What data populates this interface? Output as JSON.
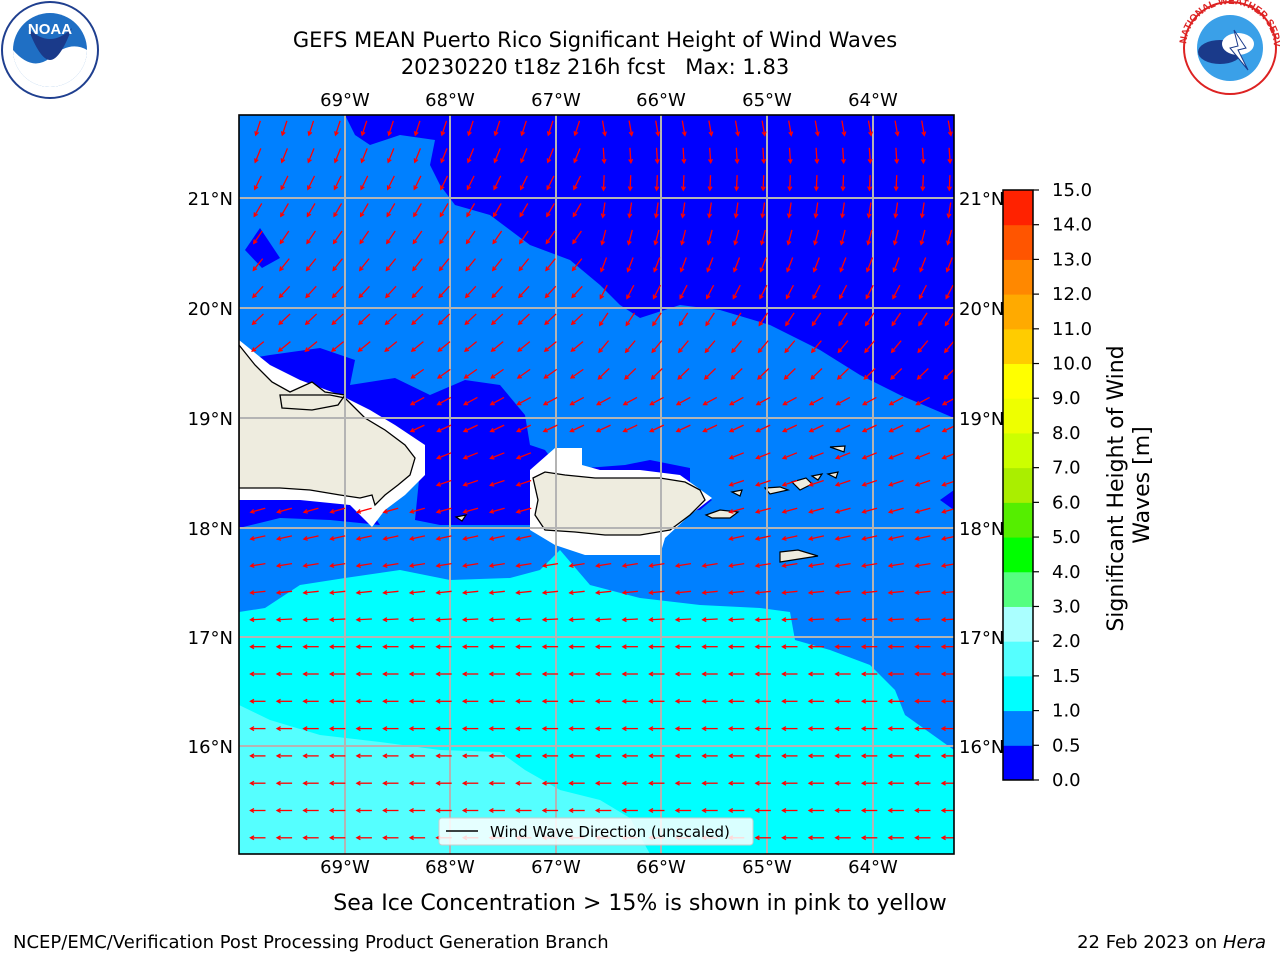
{
  "header": {
    "title": "GEFS MEAN Puerto Rico Significant Height of Wind Waves",
    "subtitle": "20230220 t18z 216h fcst",
    "max_label": "Max: 1.83"
  },
  "logos": {
    "left_text": "NOAA",
    "left_ring": "NATIONAL OCEANIC AND ATMOSPHERIC ADMINISTRATION · U.S. DEPARTMENT OF COMMERCE",
    "right_ring": "NATIONAL WEATHER SERVICE"
  },
  "map": {
    "lon_labels": [
      "69°W",
      "68°W",
      "67°W",
      "66°W",
      "65°W",
      "64°W"
    ],
    "lat_labels": [
      "21°N",
      "20°N",
      "19°N",
      "18°N",
      "17°N",
      "16°N"
    ],
    "legend_label": "Wind Wave Direction (unscaled)",
    "arrow_color": "#ff0000",
    "land_color": "#eeecdf"
  },
  "colorbar": {
    "title": "Significant Height of Wind Waves [m]",
    "title_line1": "Significant Height of Wind",
    "title_line2": "Waves [m]",
    "ticks": [
      "0.0",
      "0.5",
      "1.0",
      "1.5",
      "2.0",
      "3.0",
      "4.0",
      "5.0",
      "6.0",
      "7.0",
      "8.0",
      "9.0",
      "10.0",
      "11.0",
      "12.0",
      "13.0",
      "14.0",
      "15.0"
    ],
    "colors": [
      "#0000ff",
      "#0080ff",
      "#00ffff",
      "#55ffff",
      "#aaffff",
      "#55ff80",
      "#00ff00",
      "#55ee00",
      "#aaee00",
      "#ccff00",
      "#eeff00",
      "#ffff00",
      "#ffcc00",
      "#ffaa00",
      "#ff8800",
      "#ff5500",
      "#ff2200",
      "#ff0000"
    ]
  },
  "footer": {
    "caption": "Sea Ice Concentration > 15% is shown in pink to yellow",
    "left": "NCEP/EMC/Verification Post Processing Product Generation Branch",
    "right_prefix": "22 Feb 2023 on ",
    "right_host": "Hera"
  }
}
